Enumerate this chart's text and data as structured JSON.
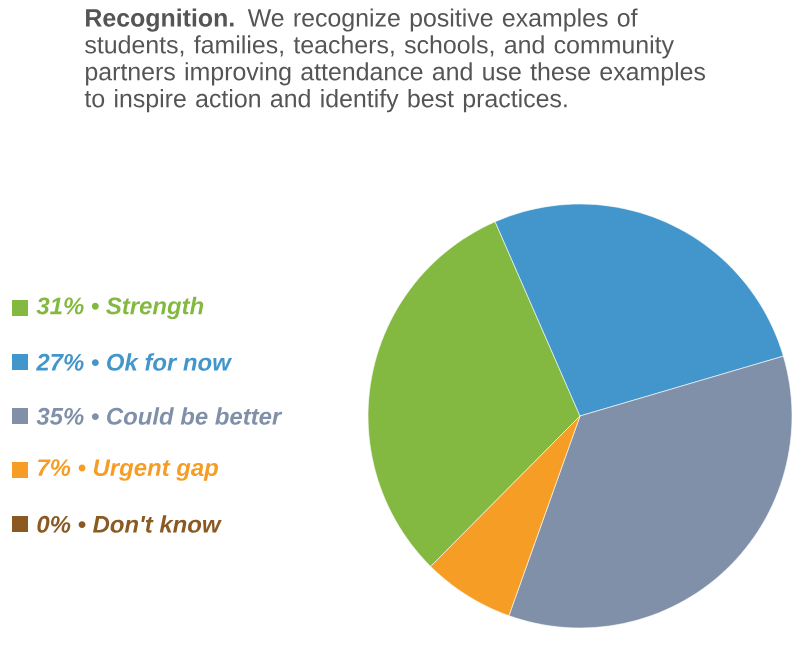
{
  "chart_data": {
    "type": "pie",
    "title": "**Recognition.** We recognize positive examples of students, families, teachers, schools, and community partners improving attendance and use these examples to inspire action and identify best practices.",
    "categories": [
      "31% • Strength",
      "27% • Ok for now",
      "35% • Could be better",
      "7% • Urgent gap",
      "0% • Don't know"
    ],
    "values": [
      31,
      27,
      35,
      7,
      0
    ],
    "colors": [
      "#84b941",
      "#4396cb",
      "#8090a8",
      "#f59d25",
      "#8b5a23"
    ],
    "legend": "left"
  }
}
